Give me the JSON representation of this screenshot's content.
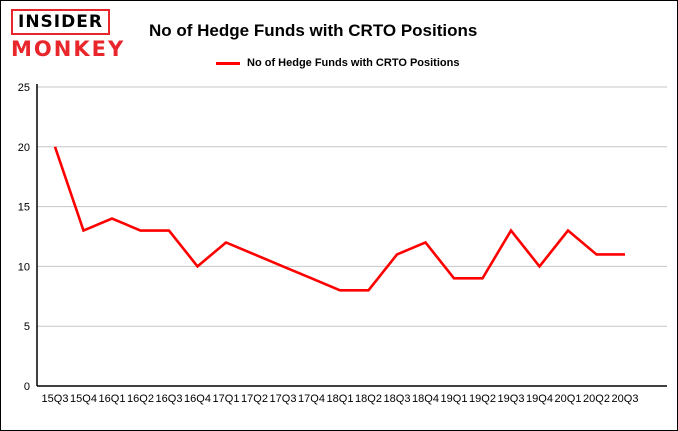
{
  "header": {
    "logo": {
      "line1": "INSIDER",
      "line2": "MONKEY"
    },
    "title": "No of Hedge Funds with CRTO Positions"
  },
  "legend": {
    "label": "No of Hedge Funds with CRTO Positions"
  },
  "colors": {
    "logo_red": "#e8262b",
    "line": "#ff0000",
    "grid": "#c6c6c6",
    "axis": "#000000"
  },
  "chart_data": {
    "type": "line",
    "title": "No of Hedge Funds with CRTO Positions",
    "legend_entry": "No of Hedge Funds with CRTO Positions",
    "categories": [
      "15Q3",
      "15Q4",
      "16Q1",
      "16Q2",
      "16Q3",
      "16Q4",
      "17Q1",
      "17Q2",
      "17Q3",
      "17Q4",
      "18Q1",
      "18Q2",
      "18Q3",
      "18Q4",
      "19Q1",
      "19Q2",
      "19Q3",
      "19Q4",
      "20Q1",
      "20Q2",
      "20Q3"
    ],
    "values": [
      20,
      13,
      14,
      13,
      13,
      10,
      12,
      11,
      10,
      9,
      8,
      8,
      11,
      12,
      9,
      9,
      13,
      10,
      13,
      11,
      11
    ],
    "ylim": [
      0,
      25
    ],
    "yticks": [
      0,
      5,
      10,
      15,
      20,
      25
    ],
    "grid": true,
    "legend_position": "top",
    "line_color": "#ff0000",
    "grid_color": "#c6c6c6"
  }
}
